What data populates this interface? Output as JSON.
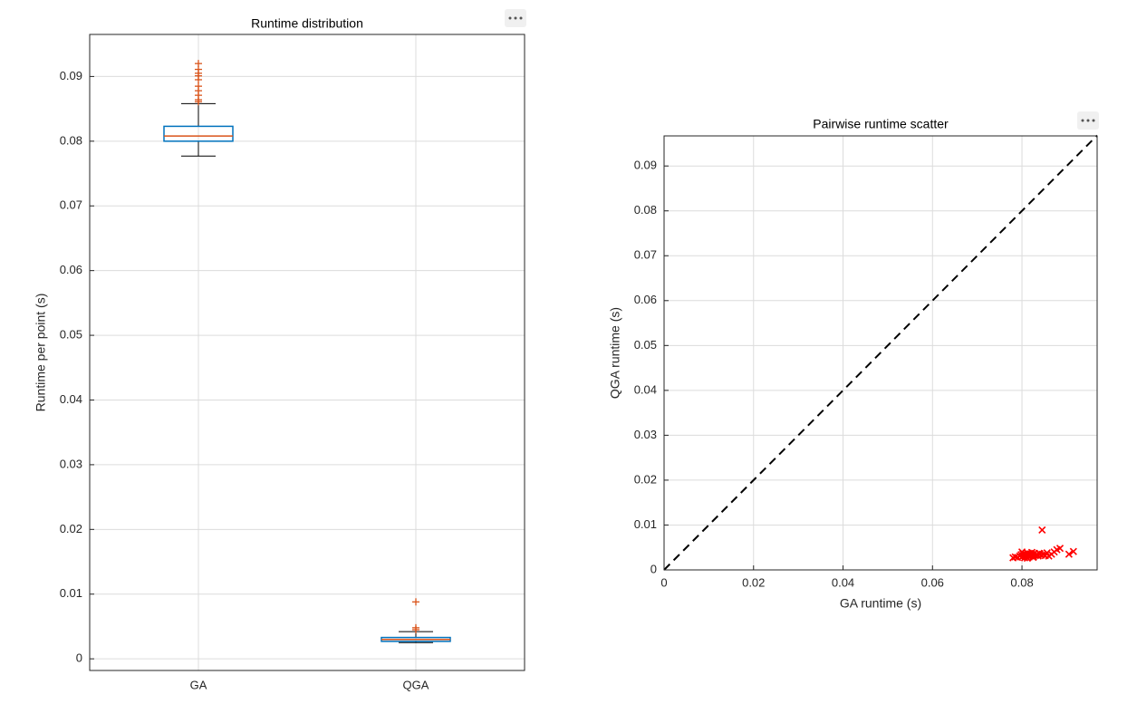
{
  "chart_data": [
    {
      "type": "boxplot",
      "title": "Runtime distribution",
      "ylabel": "Runtime per point (s)",
      "categories": [
        "GA",
        "QGA"
      ],
      "boxes": [
        {
          "whisker_low": 0.0777,
          "q1": 0.08,
          "median": 0.0808,
          "q3": 0.0823,
          "whisker_high": 0.0858,
          "outliers": [
            0.0861,
            0.0864,
            0.0871,
            0.0878,
            0.0885,
            0.0895,
            0.0901,
            0.0905,
            0.0911,
            0.092
          ]
        },
        {
          "whisker_low": 0.0025,
          "q1": 0.0027,
          "median": 0.003,
          "q3": 0.0033,
          "whisker_high": 0.0042,
          "outliers": [
            0.0045,
            0.0048,
            0.0088
          ]
        }
      ],
      "box_color": "#0072bd",
      "median_color": "#d95319",
      "outlier_color": "#d95319",
      "ylim": [
        -0.0018,
        0.0965
      ],
      "yticks": [
        0,
        0.01,
        0.02,
        0.03,
        0.04,
        0.05,
        0.06,
        0.07,
        0.08,
        0.09
      ],
      "grid": true
    },
    {
      "type": "scatter",
      "title": "Pairwise runtime scatter",
      "xlabel": "GA runtime (s)",
      "ylabel": "QGA runtime (s)",
      "series": [
        {
          "color": "#ff0000",
          "marker": "x",
          "x": [
            0.079,
            0.0795,
            0.0798,
            0.08,
            0.0802,
            0.0804,
            0.0806,
            0.0808,
            0.081,
            0.0812,
            0.0814,
            0.0816,
            0.0818,
            0.082,
            0.0822,
            0.0824,
            0.0826,
            0.0828,
            0.083,
            0.0833,
            0.0836,
            0.084,
            0.0843,
            0.0845,
            0.0848,
            0.0852,
            0.0856,
            0.086,
            0.0866,
            0.0872,
            0.0878,
            0.0885,
            0.0905,
            0.0915,
            0.078,
            0.0785,
            0.08,
            0.0812,
            0.0825,
            0.0838
          ],
          "values": [
            0.0028,
            0.0031,
            0.0034,
            0.0029,
            0.0036,
            0.0032,
            0.0027,
            0.0035,
            0.003,
            0.0038,
            0.0033,
            0.0029,
            0.0036,
            0.0031,
            0.0039,
            0.0034,
            0.003,
            0.0037,
            0.0032,
            0.0035,
            0.0031,
            0.0036,
            0.0033,
            0.0089,
            0.0034,
            0.0032,
            0.0038,
            0.0031,
            0.0035,
            0.004,
            0.0045,
            0.0048,
            0.0035,
            0.0041,
            0.0027,
            0.0029,
            0.004,
            0.0026,
            0.0028,
            0.0037
          ]
        }
      ],
      "reference_line": {
        "x": [
          0,
          0.0968
        ],
        "values": [
          0,
          0.0968
        ],
        "color": "#000000",
        "style": "dashed"
      },
      "xlim": [
        0,
        0.0968
      ],
      "ylim": [
        0,
        0.0967
      ],
      "xticks": [
        0,
        0.02,
        0.04,
        0.06,
        0.08
      ],
      "yticks": [
        0,
        0.01,
        0.02,
        0.03,
        0.04,
        0.05,
        0.06,
        0.07,
        0.08,
        0.09
      ],
      "grid": true
    }
  ]
}
